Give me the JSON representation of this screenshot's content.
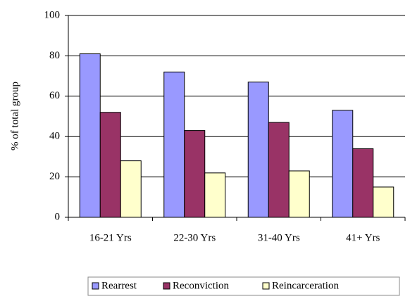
{
  "chart_data": {
    "type": "bar",
    "y_label": "% of total group",
    "categories": [
      "16-21 Yrs",
      "22-30 Yrs",
      "31-40 Yrs",
      "41+ Yrs"
    ],
    "series": [
      {
        "name": "Rearrest",
        "color": "#9999ff",
        "values": [
          81,
          72,
          67,
          53
        ]
      },
      {
        "name": "Reconviction",
        "color": "#993366",
        "values": [
          52,
          43,
          47,
          34
        ]
      },
      {
        "name": "Reincarceration",
        "color": "#ffffcc",
        "values": [
          28,
          22,
          23,
          15
        ]
      }
    ],
    "ylim": [
      0,
      100
    ],
    "yticks": [
      0,
      20,
      40,
      60,
      80,
      100
    ],
    "grid": true,
    "legend": "bottom"
  }
}
